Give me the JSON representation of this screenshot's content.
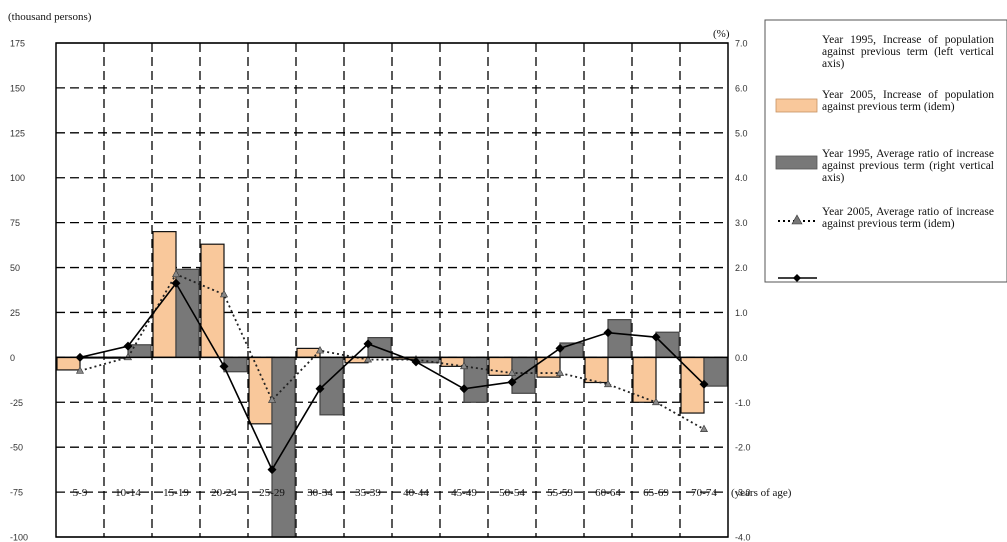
{
  "chart_data": {
    "type": "bar",
    "left_axis_unit": "(thousand persons)",
    "right_axis_unit": "(%)",
    "x_unit": "(years of age)",
    "left_ylim": [
      -100,
      175
    ],
    "right_ylim": [
      -4.0,
      7.0
    ],
    "left_ticks": [
      "175",
      "150",
      "125",
      "100",
      "75",
      "50",
      "25",
      "0",
      "-25",
      "-50",
      "-75",
      "-100"
    ],
    "right_ticks": [
      "7.0",
      "6.0",
      "5.0",
      "4.0",
      "3.0",
      "2.0",
      "1.0",
      "0.0",
      "-1.0",
      "-2.0",
      "-3.0",
      "-4.0"
    ],
    "categories": [
      "5-9",
      "10-14",
      "15-19",
      "20-24",
      "25-29",
      "30-34",
      "35-39",
      "40-44",
      "45-49",
      "50-54",
      "55-59",
      "60-64",
      "65-69",
      "70-74"
    ],
    "series": [
      {
        "name": "Year 1995, Increase of population against previous term (left vertical axis)",
        "kind": "bar",
        "axis": "left",
        "color": "#f9c89b",
        "values": [
          -7,
          0,
          70,
          63,
          -37,
          5,
          -3,
          -1,
          -5,
          -10,
          -11,
          -14,
          -25,
          -31
        ]
      },
      {
        "name": "Year 2005, Increase of population against previous term (idem)",
        "kind": "bar",
        "axis": "left",
        "color": "#787878",
        "values": [
          0,
          7,
          49,
          -8,
          -100,
          -32,
          11,
          -3,
          -25,
          -20,
          8,
          21,
          14,
          -16
        ]
      },
      {
        "name": "Year 1995, Average ratio of increase against previous term (right vertical axis)",
        "kind": "line",
        "axis": "right",
        "color": "#000000",
        "style": "solid",
        "marker": "diamond",
        "values": [
          0.0,
          0.25,
          1.65,
          -0.2,
          -2.5,
          -0.7,
          0.3,
          -0.1,
          -0.7,
          -0.55,
          0.2,
          0.55,
          0.45,
          -0.6
        ]
      },
      {
        "name": "Year 2005, Average ratio of increase against previous term (idem)",
        "kind": "line",
        "axis": "right",
        "color": "#000000",
        "style": "dotted",
        "marker": "triangle",
        "values": [
          -0.3,
          0.0,
          1.85,
          1.4,
          -0.95,
          0.15,
          -0.05,
          -0.05,
          -0.2,
          -0.35,
          -0.35,
          -0.6,
          -1.0,
          -1.6
        ]
      }
    ],
    "grid": true,
    "legend_position": "right"
  }
}
